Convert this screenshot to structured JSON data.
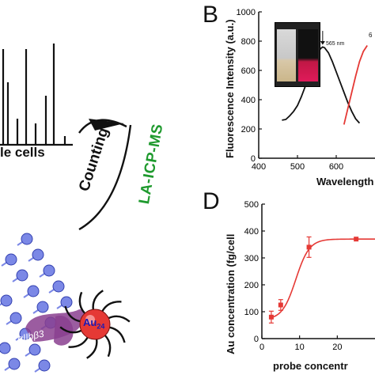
{
  "figure": {
    "panel_b_letter": "B",
    "panel_d_letter": "D",
    "single_cells_text": "le cells",
    "counting_label": "Counting",
    "la_icp_ms_label": "LA-ICP-MS",
    "au_label": "Au",
    "au_subscript": "24",
    "receptor_label": "αIIbβ3",
    "inset_annotation_left": "565 nm",
    "inset_annotation_right": "6",
    "colors": {
      "green_text": "#1f9a2e",
      "red_curve": "#e53935",
      "blue_membrane": "#7b88e6",
      "purple_receptor": "#8a3f8f",
      "gold_core": "#e53935"
    }
  },
  "chart_data": [
    {
      "id": "panel-b",
      "type": "line",
      "title": "",
      "xlabel": "Wavelength",
      "ylabel": "Fluorescence Intensity (a.u.)",
      "xlim": [
        400,
        700
      ],
      "ylim": [
        0,
        1000
      ],
      "x_ticks": [
        400,
        500,
        600
      ],
      "y_ticks": [
        0,
        200,
        400,
        600,
        800,
        1000
      ],
      "grid": false,
      "series": [
        {
          "name": "",
          "color": "#111111",
          "x": [
            460,
            470,
            480,
            490,
            500,
            510,
            520,
            530,
            540,
            550,
            560,
            565,
            570,
            580,
            590,
            600,
            610,
            620,
            630,
            640,
            650,
            660
          ],
          "y": [
            260,
            265,
            290,
            320,
            360,
            420,
            490,
            570,
            650,
            710,
            750,
            760,
            755,
            720,
            660,
            590,
            520,
            450,
            380,
            320,
            270,
            240
          ]
        },
        {
          "name": "",
          "color": "#e53935",
          "x": [
            620,
            630,
            640,
            650,
            660,
            670,
            680
          ],
          "y": [
            230,
            340,
            450,
            560,
            660,
            730,
            770
          ]
        }
      ]
    },
    {
      "id": "panel-d",
      "type": "line",
      "title": "",
      "xlabel": "probe concentr",
      "ylabel": "Au concentration (fg/cell",
      "xlim": [
        0,
        30
      ],
      "ylim": [
        0,
        500
      ],
      "x_ticks": [
        0,
        10,
        20
      ],
      "y_ticks": [
        0,
        100,
        200,
        300,
        400,
        500
      ],
      "grid": false,
      "points": [
        {
          "x": 2.5,
          "y": 80,
          "err": 22
        },
        {
          "x": 5,
          "y": 125,
          "err": 20
        },
        {
          "x": 12.5,
          "y": 340,
          "err": 38
        },
        {
          "x": 25,
          "y": 370,
          "err": 0
        }
      ],
      "fit_color": "#e53935"
    }
  ]
}
